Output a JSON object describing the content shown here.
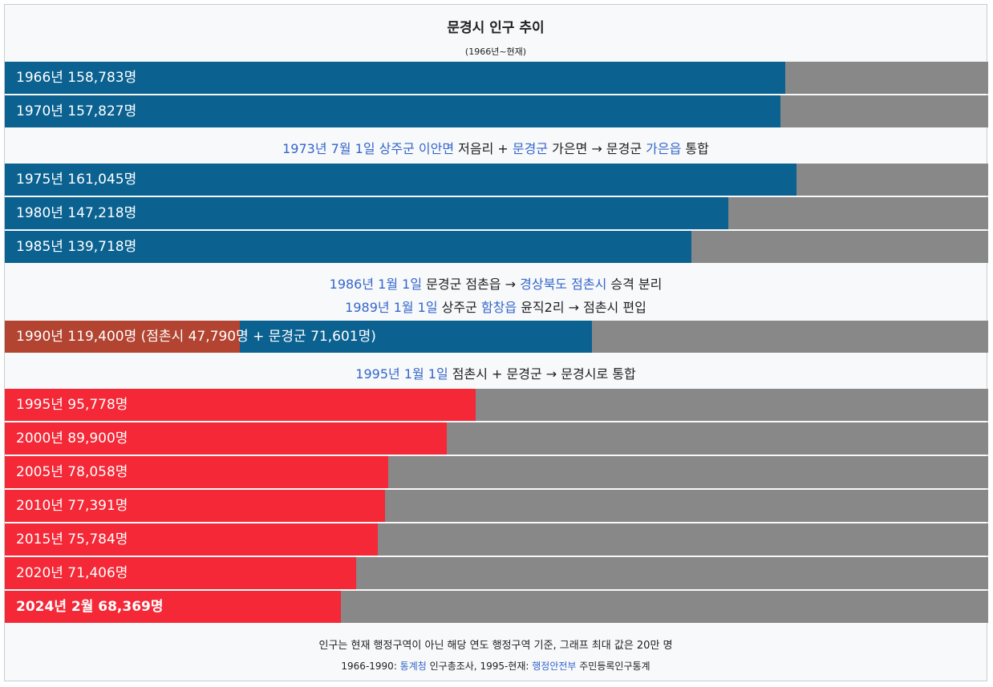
{
  "colors": {
    "period1": "#0b6291",
    "period2_sub": "#b24431",
    "period3": "#f42836",
    "remainder": "#888888",
    "link": "#3366cc"
  },
  "chart_data": {
    "type": "bar",
    "orientation": "horizontal",
    "title": "문경시 인구 추이",
    "subtitle": "(1966년~현재)",
    "xlim": [
      0,
      200000
    ],
    "unit": "명",
    "categories": [
      "1966",
      "1970",
      "1975",
      "1980",
      "1985",
      "1990",
      "1995",
      "2000",
      "2005",
      "2010",
      "2015",
      "2020",
      "2024-02"
    ],
    "values": [
      158783,
      157827,
      161045,
      147218,
      139718,
      119400,
      95778,
      89900,
      78058,
      77391,
      75784,
      71406,
      68369
    ],
    "stacked_1990": [
      {
        "name": "점촌시",
        "value": 47790
      },
      {
        "name": "문경군",
        "value": 71601
      }
    ]
  },
  "rows": [
    {
      "label": "1966년 158,783명"
    },
    {
      "label": "1970년 157,827명"
    },
    {
      "label": "1975년 161,045명"
    },
    {
      "label": "1980년 147,218명"
    },
    {
      "label": "1985년 139,718명"
    },
    {
      "label": "1990년 119,400명 (점촌시 47,790명 + 문경군 71,601명)"
    },
    {
      "label": "1995년 95,778명"
    },
    {
      "label": "2000년 89,900명"
    },
    {
      "label": "2005년 78,058명"
    },
    {
      "label": "2010년 77,391명"
    },
    {
      "label": "2015년 75,784명"
    },
    {
      "label": "2020년 71,406명"
    },
    {
      "label": "2024년 2월 68,369명"
    }
  ],
  "notes": {
    "n1": {
      "date": "1973년 7월 1일",
      "a1": "상주군",
      "a2": "이안면",
      "t1": " 저음리 + ",
      "a3": "문경군",
      "t2": " 가은면 → 문경군 ",
      "a4": "가은읍",
      "t3": " 통합"
    },
    "n2": {
      "date": "1986년 1월 1일",
      "t1": " 문경군 점촌읍 → ",
      "a1": "경상북도",
      "a2": "점촌시",
      "t2": " 승격 분리"
    },
    "n3": {
      "date": "1989년 1월 1일",
      "t1": " 상주군 ",
      "a1": "함창읍",
      "t2": " 윤직2리 → 점촌시 편입"
    },
    "n4": {
      "date": "1995년 1월 1일",
      "t1": " 점촌시 + 문경군 → 문경시로 통합"
    }
  },
  "footer": {
    "line1": "인구는 현재 행정구역이 아닌 해당 연도 행정구역 기준, 그래프 최대 값은 20만 명",
    "l2_a": "1966-1990: ",
    "l2_link1": "통계청",
    "l2_b": " 인구총조사, 1995-현재: ",
    "l2_link2": "행정안전부",
    "l2_c": " 주민등록인구통계"
  }
}
